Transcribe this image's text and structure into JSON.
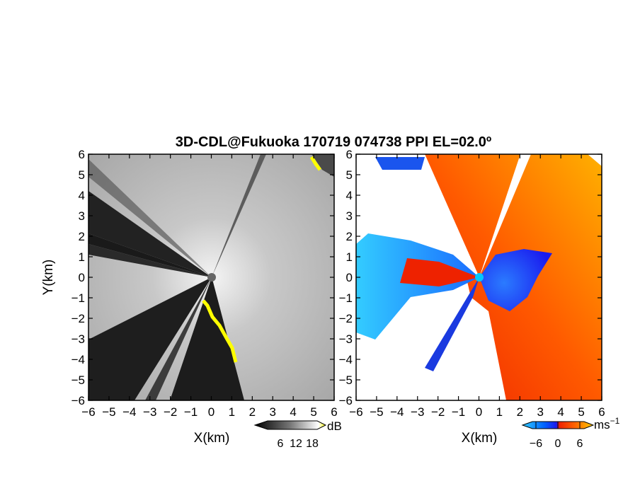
{
  "chart_data": {
    "title": "3D-CDL@Fukuoka 170719 074738 PPI EL=02.0º",
    "panels": [
      {
        "name": "intensity",
        "type": "heatmap",
        "xlabel": "X(km)",
        "ylabel": "Y(km)",
        "xlim": [
          -6,
          6
        ],
        "ylim": [
          -6,
          6
        ],
        "xticks": [
          "-6",
          "-5",
          "-4",
          "-3",
          "-2",
          "-1",
          "0",
          "1",
          "2",
          "3",
          "4",
          "5",
          "6"
        ],
        "yticks": [
          "6",
          "5",
          "4",
          "3",
          "2",
          "1",
          "0",
          "-1",
          "-2",
          "-3",
          "-4",
          "-5",
          "-6"
        ],
        "blocked_sectors_deg": [
          [
            110,
            125
          ],
          [
            125,
            135
          ],
          [
            140,
            200
          ],
          [
            210,
            245
          ],
          [
            248,
            258
          ],
          [
            258,
            278
          ],
          [
            20,
            25
          ]
        ],
        "colorbar": {
          "unit": "dB",
          "ticks": [
            "6",
            "12",
            "18"
          ],
          "colors": [
            "#000000",
            "#555555",
            "#aaaaaa",
            "#ffffff",
            "#ffff00"
          ]
        }
      },
      {
        "name": "doppler-velocity",
        "type": "heatmap",
        "xlabel": "X(km)",
        "xlim": [
          -6,
          6
        ],
        "ylim": [
          -6,
          6
        ],
        "xticks": [
          "-6",
          "-5",
          "-4",
          "-3",
          "-2",
          "-1",
          "0",
          "1",
          "2",
          "3",
          "4",
          "5",
          "6"
        ],
        "yticks": [
          "6",
          "5",
          "4",
          "3",
          "2",
          "1",
          "0",
          "-1",
          "-2",
          "-3",
          "-4",
          "-5",
          "-6"
        ],
        "colorbar": {
          "unit": "ms",
          "unit_exp": "−1",
          "ticks": [
            "−6",
            "0",
            "6"
          ],
          "colors": [
            "#33ccff",
            "#0055ff",
            "#1a1aee",
            "#ee2200",
            "#ff6600",
            "#ffcc00"
          ]
        }
      }
    ]
  }
}
